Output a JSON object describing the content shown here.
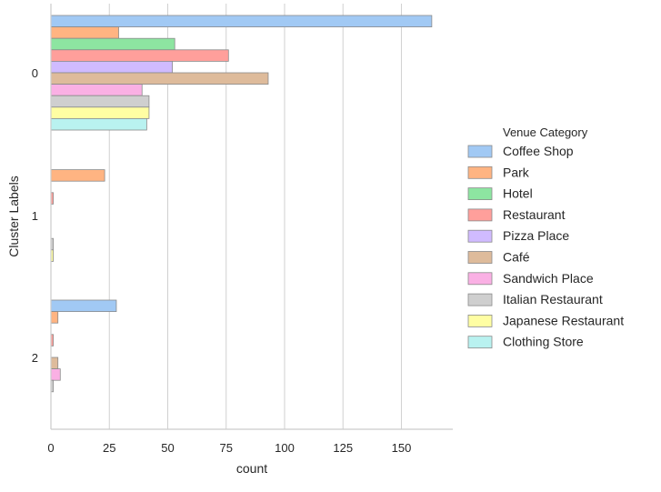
{
  "chart_data": {
    "type": "bar",
    "orientation": "horizontal",
    "xlabel": "count",
    "ylabel": "Cluster Labels",
    "xlim": [
      0,
      172
    ],
    "x_ticks": [
      "0",
      "25",
      "50",
      "75",
      "100",
      "125",
      "150"
    ],
    "grid": "vertical",
    "categories": [
      "0",
      "1",
      "2"
    ],
    "legend": {
      "title": "Venue Category",
      "placement": "right"
    },
    "series": [
      {
        "name": "Coffee Shop",
        "color": "#a1c9f4",
        "values": [
          163,
          0,
          28
        ]
      },
      {
        "name": "Park",
        "color": "#ffb482",
        "values": [
          29,
          23,
          3
        ]
      },
      {
        "name": "Hotel",
        "color": "#8de5a1",
        "values": [
          53,
          0,
          0
        ]
      },
      {
        "name": "Restaurant",
        "color": "#ff9f9b",
        "values": [
          76,
          1,
          1
        ]
      },
      {
        "name": "Pizza Place",
        "color": "#d0bbff",
        "values": [
          52,
          0,
          0
        ]
      },
      {
        "name": "Café",
        "color": "#debb9b",
        "values": [
          93,
          0,
          3
        ]
      },
      {
        "name": "Sandwich Place",
        "color": "#fab0e4",
        "values": [
          39,
          0,
          4
        ]
      },
      {
        "name": "Italian Restaurant",
        "color": "#cfcfcf",
        "values": [
          42,
          1,
          1
        ]
      },
      {
        "name": "Japanese Restaurant",
        "color": "#fffea3",
        "values": [
          42,
          1,
          0
        ]
      },
      {
        "name": "Clothing Store",
        "color": "#b9f2f0",
        "values": [
          41,
          0,
          0
        ]
      }
    ]
  }
}
